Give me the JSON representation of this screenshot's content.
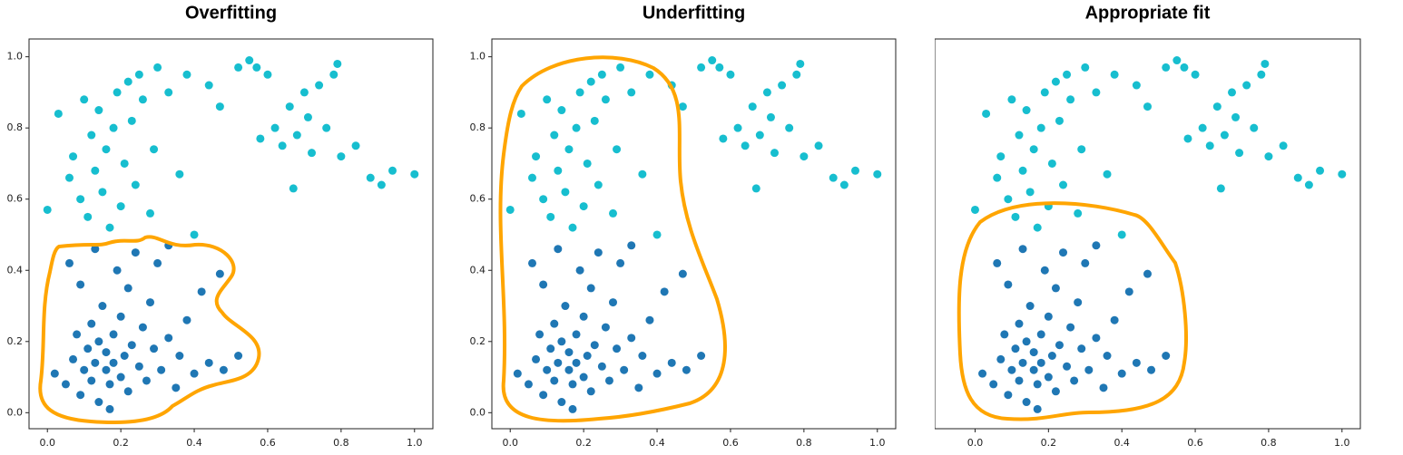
{
  "chart_data": [
    {
      "type": "scatter",
      "title": "Overfitting",
      "xlim": [
        -0.05,
        1.05
      ],
      "ylim": [
        -0.045,
        1.05
      ],
      "xticks": [
        {
          "value": 0,
          "label": "0.0"
        },
        0.2,
        0.4,
        0.6,
        0.8,
        {
          "value": 1,
          "label": "1.0"
        }
      ],
      "yticks": [
        {
          "value": 0,
          "label": "0.0"
        },
        0.2,
        0.4,
        0.6,
        0.8,
        {
          "value": 1,
          "label": "1.0"
        }
      ],
      "series": [
        {
          "color": "#1f77b4",
          "x": [
            0.02,
            0.05,
            0.07,
            0.08,
            0.09,
            0.1,
            0.11,
            0.12,
            0.12,
            0.13,
            0.14,
            0.14,
            0.15,
            0.16,
            0.16,
            0.17,
            0.18,
            0.18,
            0.19,
            0.2,
            0.2,
            0.21,
            0.22,
            0.22,
            0.23,
            0.24,
            0.25,
            0.26,
            0.27,
            0.28,
            0.29,
            0.3,
            0.31,
            0.33,
            0.35,
            0.36,
            0.38,
            0.4,
            0.42,
            0.44,
            0.47,
            0.48,
            0.52,
            0.06,
            0.09,
            0.13,
            0.17,
            0.33
          ],
          "values": [
            0.11,
            0.08,
            0.15,
            0.22,
            0.05,
            0.12,
            0.18,
            0.25,
            0.09,
            0.14,
            0.03,
            0.2,
            0.3,
            0.12,
            0.17,
            0.08,
            0.22,
            0.14,
            0.4,
            0.1,
            0.27,
            0.16,
            0.06,
            0.35,
            0.19,
            0.45,
            0.13,
            0.24,
            0.09,
            0.31,
            0.18,
            0.42,
            0.12,
            0.21,
            0.07,
            0.16,
            0.26,
            0.11,
            0.34,
            0.14,
            0.39,
            0.12,
            0.16,
            0.42,
            0.36,
            0.46,
            0.01,
            0.47
          ]
        },
        {
          "color": "#17becf",
          "x": [
            0,
            0.03,
            0.06,
            0.07,
            0.09,
            0.1,
            0.11,
            0.12,
            0.13,
            0.14,
            0.15,
            0.16,
            0.17,
            0.18,
            0.19,
            0.2,
            0.21,
            0.22,
            0.23,
            0.24,
            0.25,
            0.26,
            0.28,
            0.29,
            0.3,
            0.33,
            0.36,
            0.38,
            0.4,
            0.44,
            0.47,
            0.52,
            0.55,
            0.57,
            0.6,
            0.62,
            0.64,
            0.66,
            0.68,
            0.7,
            0.72,
            0.74,
            0.76,
            0.78,
            0.79,
            0.8,
            0.84,
            0.88,
            0.91,
            0.94,
            1,
            0.67,
            0.71,
            0.58
          ],
          "values": [
            0.57,
            0.84,
            0.66,
            0.72,
            0.6,
            0.88,
            0.55,
            0.78,
            0.68,
            0.85,
            0.62,
            0.74,
            0.52,
            0.8,
            0.9,
            0.58,
            0.7,
            0.93,
            0.82,
            0.64,
            0.95,
            0.88,
            0.56,
            0.74,
            0.97,
            0.9,
            0.67,
            0.95,
            0.5,
            0.92,
            0.86,
            0.97,
            0.99,
            0.97,
            0.95,
            0.8,
            0.75,
            0.86,
            0.78,
            0.9,
            0.73,
            0.92,
            0.8,
            0.95,
            0.98,
            0.72,
            0.75,
            0.66,
            0.64,
            0.68,
            0.67,
            0.63,
            0.83,
            0.77
          ]
        }
      ]
    },
    {
      "type": "scatter",
      "title": "Underfitting",
      "xlim": [
        -0.05,
        1.05
      ],
      "ylim": [
        -0.045,
        1.05
      ],
      "xticks": [
        {
          "value": 0,
          "label": "0.0"
        },
        0.2,
        0.4,
        0.6,
        0.8,
        {
          "value": 1,
          "label": "1.0"
        }
      ],
      "yticks": [
        {
          "value": 0,
          "label": "0.0"
        },
        0.2,
        0.4,
        0.6,
        0.8,
        {
          "value": 1,
          "label": "1.0"
        }
      ],
      "series": [
        {
          "color": "#1f77b4",
          "x": [
            0.02,
            0.05,
            0.07,
            0.08,
            0.09,
            0.1,
            0.11,
            0.12,
            0.12,
            0.13,
            0.14,
            0.14,
            0.15,
            0.16,
            0.16,
            0.17,
            0.18,
            0.18,
            0.19,
            0.2,
            0.2,
            0.21,
            0.22,
            0.22,
            0.23,
            0.24,
            0.25,
            0.26,
            0.27,
            0.28,
            0.29,
            0.3,
            0.31,
            0.33,
            0.35,
            0.36,
            0.38,
            0.4,
            0.42,
            0.44,
            0.47,
            0.48,
            0.52,
            0.06,
            0.09,
            0.13,
            0.17,
            0.33
          ],
          "values": [
            0.11,
            0.08,
            0.15,
            0.22,
            0.05,
            0.12,
            0.18,
            0.25,
            0.09,
            0.14,
            0.03,
            0.2,
            0.3,
            0.12,
            0.17,
            0.08,
            0.22,
            0.14,
            0.4,
            0.1,
            0.27,
            0.16,
            0.06,
            0.35,
            0.19,
            0.45,
            0.13,
            0.24,
            0.09,
            0.31,
            0.18,
            0.42,
            0.12,
            0.21,
            0.07,
            0.16,
            0.26,
            0.11,
            0.34,
            0.14,
            0.39,
            0.12,
            0.16,
            0.42,
            0.36,
            0.46,
            0.01,
            0.47
          ]
        },
        {
          "color": "#17becf",
          "x": [
            0,
            0.03,
            0.06,
            0.07,
            0.09,
            0.1,
            0.11,
            0.12,
            0.13,
            0.14,
            0.15,
            0.16,
            0.17,
            0.18,
            0.19,
            0.2,
            0.21,
            0.22,
            0.23,
            0.24,
            0.25,
            0.26,
            0.28,
            0.29,
            0.3,
            0.33,
            0.36,
            0.38,
            0.4,
            0.44,
            0.47,
            0.52,
            0.55,
            0.57,
            0.6,
            0.62,
            0.64,
            0.66,
            0.68,
            0.7,
            0.72,
            0.74,
            0.76,
            0.78,
            0.79,
            0.8,
            0.84,
            0.88,
            0.91,
            0.94,
            1,
            0.67,
            0.71,
            0.58
          ],
          "values": [
            0.57,
            0.84,
            0.66,
            0.72,
            0.6,
            0.88,
            0.55,
            0.78,
            0.68,
            0.85,
            0.62,
            0.74,
            0.52,
            0.8,
            0.9,
            0.58,
            0.7,
            0.93,
            0.82,
            0.64,
            0.95,
            0.88,
            0.56,
            0.74,
            0.97,
            0.9,
            0.67,
            0.95,
            0.5,
            0.92,
            0.86,
            0.97,
            0.99,
            0.97,
            0.95,
            0.8,
            0.75,
            0.86,
            0.78,
            0.9,
            0.73,
            0.92,
            0.8,
            0.95,
            0.98,
            0.72,
            0.75,
            0.66,
            0.64,
            0.68,
            0.67,
            0.63,
            0.83,
            0.77
          ]
        }
      ]
    },
    {
      "type": "scatter",
      "title": "Appropriate fit",
      "xlim": [
        -0.11,
        1.05
      ],
      "ylim": [
        -0.045,
        1.05
      ],
      "xticks": [
        {
          "value": 0,
          "label": "0.0"
        },
        0.2,
        0.4,
        0.6,
        0.8,
        {
          "value": 1,
          "label": "1.0"
        }
      ],
      "yticks": [
        {
          "value": 0,
          "label": "0.0"
        },
        0.2,
        0.4,
        0.6,
        0.8,
        {
          "value": 1,
          "label": "1.0"
        }
      ],
      "series": [
        {
          "color": "#1f77b4",
          "x": [
            0.02,
            0.05,
            0.07,
            0.08,
            0.09,
            0.1,
            0.11,
            0.12,
            0.12,
            0.13,
            0.14,
            0.14,
            0.15,
            0.16,
            0.16,
            0.17,
            0.18,
            0.18,
            0.19,
            0.2,
            0.2,
            0.21,
            0.22,
            0.22,
            0.23,
            0.24,
            0.25,
            0.26,
            0.27,
            0.28,
            0.29,
            0.3,
            0.31,
            0.33,
            0.35,
            0.36,
            0.38,
            0.4,
            0.42,
            0.44,
            0.47,
            0.48,
            0.52,
            0.06,
            0.09,
            0.13,
            0.17,
            0.33
          ],
          "values": [
            0.11,
            0.08,
            0.15,
            0.22,
            0.05,
            0.12,
            0.18,
            0.25,
            0.09,
            0.14,
            0.03,
            0.2,
            0.3,
            0.12,
            0.17,
            0.08,
            0.22,
            0.14,
            0.4,
            0.1,
            0.27,
            0.16,
            0.06,
            0.35,
            0.19,
            0.45,
            0.13,
            0.24,
            0.09,
            0.31,
            0.18,
            0.42,
            0.12,
            0.21,
            0.07,
            0.16,
            0.26,
            0.11,
            0.34,
            0.14,
            0.39,
            0.12,
            0.16,
            0.42,
            0.36,
            0.46,
            0.01,
            0.47
          ]
        },
        {
          "color": "#17becf",
          "x": [
            0,
            0.03,
            0.06,
            0.07,
            0.09,
            0.1,
            0.11,
            0.12,
            0.13,
            0.14,
            0.15,
            0.16,
            0.17,
            0.18,
            0.19,
            0.2,
            0.21,
            0.22,
            0.23,
            0.24,
            0.25,
            0.26,
            0.28,
            0.29,
            0.3,
            0.33,
            0.36,
            0.38,
            0.4,
            0.44,
            0.47,
            0.52,
            0.55,
            0.57,
            0.6,
            0.62,
            0.64,
            0.66,
            0.68,
            0.7,
            0.72,
            0.74,
            0.76,
            0.78,
            0.79,
            0.8,
            0.84,
            0.88,
            0.91,
            0.94,
            1,
            0.67,
            0.71,
            0.58
          ],
          "values": [
            0.57,
            0.84,
            0.66,
            0.72,
            0.6,
            0.88,
            0.55,
            0.78,
            0.68,
            0.85,
            0.62,
            0.74,
            0.52,
            0.8,
            0.9,
            0.58,
            0.7,
            0.93,
            0.82,
            0.64,
            0.95,
            0.88,
            0.56,
            0.74,
            0.97,
            0.9,
            0.67,
            0.95,
            0.5,
            0.92,
            0.86,
            0.97,
            0.99,
            0.97,
            0.95,
            0.8,
            0.75,
            0.86,
            0.78,
            0.9,
            0.73,
            0.92,
            0.8,
            0.95,
            0.98,
            0.72,
            0.75,
            0.66,
            0.64,
            0.68,
            0.67,
            0.63,
            0.83,
            0.77
          ]
        }
      ]
    }
  ]
}
